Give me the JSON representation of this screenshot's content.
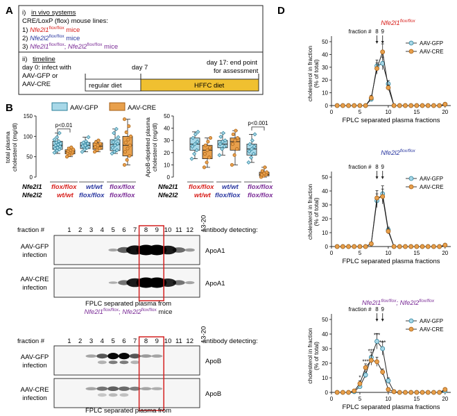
{
  "colors": {
    "gfp": "#a8d8e8",
    "gfp_edge": "#2a7f98",
    "cre": "#e8a04c",
    "cre_edge": "#a55e14",
    "red": "#d8201c",
    "blue": "#2a37a0",
    "purple": "#7a2b96",
    "hffc": "#f0c030",
    "box_highlight": "#d42020"
  },
  "panel_labels": {
    "a": "A",
    "b": "B",
    "c": "C",
    "d": "D"
  },
  "panel_a": {
    "sec1_num": "i)",
    "sec1_title": "in vivo systems",
    "sec1_desc": "CRE/LoxP (flox) mouse lines:",
    "lines": [
      {
        "num": "1)",
        "gene1": "Nfe2l1",
        "sup1": "flox/flox",
        "suffix": " mice"
      },
      {
        "num": "2)",
        "gene1": "Nfe2l2",
        "sup1": "flox/flox",
        "suffix": " mice"
      },
      {
        "num": "3)",
        "gene1": "Nfe2l1",
        "sup1": "flox/flox",
        "sep": "; ",
        "gene2": "Nfe2l2",
        "sup2": "flox/flox",
        "suffix": " mice"
      }
    ],
    "sec2_num": "ii)",
    "sec2_title": "timeline",
    "day0_l1": "day 0: infect with",
    "day0_l2": "AAV-GFP or",
    "day0_l3": "AAV-CRE",
    "day7": "day 7",
    "day17_l1": "day 17: end point",
    "day17_l2": "for assessment",
    "regular_diet": "regular diet",
    "hffc_diet": "HFFC diet"
  },
  "panel_b": {
    "legend": [
      "AAV-GFP",
      "AAV-CRE"
    ],
    "genotype_rows": {
      "row1_gene": "Nfe2l1",
      "row2_gene": "Nfe2l2"
    },
    "groups": [
      {
        "r1": "flox/flox",
        "r2": "wt/wt"
      },
      {
        "r1": "wt/wt",
        "r2": "flox/flox"
      },
      {
        "r1": "flox/flox",
        "r2": "flox/flox"
      }
    ],
    "chart_data": [
      {
        "type": "box",
        "ylabel_l1": "total plasma",
        "ylabel_l2": "cholesterol (mg/dl)",
        "ylim": [
          0,
          150
        ],
        "yticks": [
          "0",
          "50",
          "100",
          "150"
        ],
        "annotation": "p<0.01",
        "series": [
          {
            "name": "AAV-GFP",
            "boxes": [
              {
                "min": 58,
                "q1": 68,
                "median": 78,
                "q3": 88,
                "max": 108,
                "points": [
                  60,
                  65,
                  68,
                  70,
                  72,
                  75,
                  78,
                  80,
                  82,
                  85,
                  88,
                  92,
                  98,
                  108
                ]
              },
              {
                "min": 62,
                "q1": 70,
                "median": 78,
                "q3": 85,
                "max": 98,
                "points": [
                  62,
                  68,
                  72,
                  76,
                  78,
                  82,
                  85,
                  88,
                  98
                ]
              },
              {
                "min": 58,
                "q1": 65,
                "median": 80,
                "q3": 92,
                "max": 118,
                "points": [
                  58,
                  62,
                  66,
                  72,
                  78,
                  82,
                  86,
                  92,
                  98,
                  108,
                  118
                ]
              }
            ]
          },
          {
            "name": "AAV-CRE",
            "boxes": [
              {
                "min": 50,
                "q1": 57,
                "median": 62,
                "q3": 67,
                "max": 73,
                "points": [
                  50,
                  54,
                  57,
                  59,
                  61,
                  62,
                  64,
                  66,
                  68,
                  70,
                  73
                ]
              },
              {
                "min": 62,
                "q1": 68,
                "median": 76,
                "q3": 84,
                "max": 90,
                "points": [
                  62,
                  66,
                  70,
                  74,
                  78,
                  82,
                  86,
                  90
                ]
              },
              {
                "min": 30,
                "q1": 52,
                "median": 78,
                "q3": 100,
                "max": 142,
                "points": [
                  30,
                  42,
                  52,
                  62,
                  70,
                  78,
                  85,
                  92,
                  100,
                  110,
                  125,
                  142
                ]
              }
            ]
          }
        ]
      },
      {
        "type": "box",
        "ylabel_l1": "ApoB-depleted plasma",
        "ylabel_l2": "cholesterol (mg/dl)",
        "ylim": [
          0,
          50
        ],
        "yticks": [
          "0",
          "10",
          "20",
          "30",
          "40",
          "50"
        ],
        "annotation": "p<0.001",
        "series": [
          {
            "name": "AAV-GFP",
            "boxes": [
              {
                "min": 15,
                "q1": 22,
                "median": 27,
                "q3": 32,
                "max": 37,
                "points": [
                  15,
                  19,
                  22,
                  25,
                  27,
                  29,
                  32,
                  35,
                  37
                ]
              },
              {
                "min": 18,
                "q1": 24,
                "median": 27,
                "q3": 30,
                "max": 36,
                "points": [
                  18,
                  23,
                  25,
                  27,
                  29,
                  30,
                  33,
                  36
                ]
              },
              {
                "min": 12,
                "q1": 18,
                "median": 23,
                "q3": 27,
                "max": 35,
                "points": [
                  12,
                  16,
                  19,
                  21,
                  23,
                  25,
                  27,
                  30,
                  35
                ]
              }
            ]
          },
          {
            "name": "AAV-CRE",
            "boxes": [
              {
                "min": 8,
                "q1": 15,
                "median": 22,
                "q3": 26,
                "max": 32,
                "points": [
                  8,
                  12,
                  16,
                  19,
                  22,
                  24,
                  26,
                  29,
                  32
                ]
              },
              {
                "min": 10,
                "q1": 22,
                "median": 29,
                "q3": 32,
                "max": 38,
                "points": [
                  10,
                  18,
                  23,
                  27,
                  30,
                  32,
                  35,
                  38
                ]
              },
              {
                "min": 0,
                "q1": 1,
                "median": 2,
                "q3": 4,
                "max": 8,
                "points": [
                  0,
                  1,
                  2,
                  2,
                  3,
                  4,
                  5,
                  8
                ]
              }
            ]
          }
        ]
      }
    ]
  },
  "panel_c": {
    "fraction_label": "fraction #",
    "fractions": [
      "1",
      "2",
      "3",
      "4",
      "5",
      "6",
      "7",
      "8",
      "9",
      "10",
      "11",
      "12",
      "13-20"
    ],
    "antibody_header": "antibody detecting:",
    "blots_top": [
      {
        "l1": "AAV-GFP",
        "l2": "infection",
        "antibody": "ApoA1",
        "bands": [
          0,
          0,
          0,
          0,
          0.1,
          0.45,
          0.85,
          1,
          1,
          0.8,
          0.4,
          0.15,
          0
        ]
      },
      {
        "l1": "AAV-CRE",
        "l2": "infection",
        "antibody": "ApoA1",
        "bands": [
          0,
          0,
          0,
          0,
          0.05,
          0.35,
          0.8,
          1,
          1,
          0.75,
          0.35,
          0.1,
          0
        ]
      }
    ],
    "blots_bottom": [
      {
        "l1": "AAV-GFP",
        "l2": "infection",
        "antibody": "ApoB",
        "bands": [
          0,
          0,
          0.1,
          0.5,
          0.9,
          0.9,
          0.5,
          0.15,
          0.1,
          0,
          0,
          0,
          0
        ]
      },
      {
        "l1": "AAV-CRE",
        "l2": "infection",
        "antibody": "ApoB",
        "bands": [
          0,
          0,
          0.1,
          0.35,
          0.45,
          0.4,
          0.3,
          0.1,
          0.05,
          0,
          0,
          0,
          0
        ]
      }
    ],
    "caption_l1": "FPLC separated plasma from",
    "caption_gene1": "Nfe2l1",
    "caption_sup1": "flox/flox",
    "caption_sep": "; ",
    "caption_gene2": "Nfe2l2",
    "caption_sup2": "flox/flox",
    "caption_mice": " mice"
  },
  "panel_d": {
    "ylabel_l1": "cholesterol in fraction",
    "ylabel_l2": "(% of total)",
    "xlabel": "FPLC separated plasma fractions",
    "fraction_marker": "fraction #",
    "fraction_marks": [
      "8",
      "9"
    ],
    "legend": [
      "AAV-GFP",
      "AAV-CRE"
    ],
    "chart_data": [
      {
        "type": "line",
        "title_gene": "Nfe2l1",
        "title_sup": "flox/flox",
        "x": [
          1,
          2,
          3,
          4,
          5,
          6,
          7,
          8,
          9,
          10,
          11,
          12,
          13,
          14,
          15,
          16,
          17,
          18,
          19,
          20
        ],
        "xticks": [
          "0",
          "5",
          "10",
          "15",
          "20"
        ],
        "yticks": [
          "0",
          "10",
          "20",
          "30",
          "40",
          "50"
        ],
        "ylim": [
          0,
          50
        ],
        "series": [
          {
            "name": "AAV-GFP",
            "values": [
              0,
              0,
              0,
              0,
              0,
              0,
              5,
              31,
              33,
              17,
              0,
              0,
              0,
              0,
              0,
              0,
              0,
              0,
              0,
              1
            ]
          },
          {
            "name": "AAV-CRE",
            "values": [
              0,
              0,
              0,
              0,
              0,
              0,
              6,
              29,
              42,
              14,
              0,
              0,
              0,
              0,
              0,
              0,
              0,
              0,
              0,
              1
            ]
          }
        ]
      },
      {
        "type": "line",
        "title_gene": "Nfe2l2",
        "title_sup": "flox/flox",
        "x": [
          1,
          2,
          3,
          4,
          5,
          6,
          7,
          8,
          9,
          10,
          11,
          12,
          13,
          14,
          15,
          16,
          17,
          18,
          19,
          20
        ],
        "xticks": [
          "0",
          "5",
          "10",
          "15",
          "20"
        ],
        "yticks": [
          "0",
          "10",
          "20",
          "30",
          "40",
          "50"
        ],
        "ylim": [
          0,
          50
        ],
        "series": [
          {
            "name": "AAV-GFP",
            "values": [
              0,
              0,
              0,
              0,
              0,
              0,
              2,
              33,
              38,
              12,
              0,
              0,
              0,
              0,
              0,
              0,
              0,
              0,
              0,
              1
            ]
          },
          {
            "name": "AAV-CRE",
            "values": [
              0,
              0,
              0,
              0,
              0,
              0,
              2,
              35,
              36,
              11,
              0,
              0,
              0,
              0,
              0,
              0,
              0,
              0,
              0,
              1
            ]
          }
        ]
      },
      {
        "type": "line",
        "title_gene": "Nfe2l1",
        "title_sup": "flox/flox",
        "title_sep": "; ",
        "title_gene2": "Nfe2l2",
        "title_sup2": "flox/flox",
        "x": [
          1,
          2,
          3,
          4,
          5,
          6,
          7,
          8,
          9,
          10,
          11,
          12,
          13,
          14,
          15,
          16,
          17,
          18,
          19,
          20
        ],
        "xticks": [
          "0",
          "5",
          "10",
          "15",
          "20"
        ],
        "yticks": [
          "0",
          "10",
          "20",
          "30",
          "40",
          "50"
        ],
        "ylim": [
          0,
          50
        ],
        "series": [
          {
            "name": "AAV-GFP",
            "values": [
              0,
              0,
              0,
              0.5,
              4,
              12,
              24,
              35,
              30,
              8,
              0.5,
              0,
              0,
              0,
              0,
              0,
              0,
              0,
              0,
              1
            ]
          },
          {
            "name": "AAV-CRE",
            "values": [
              0,
              0,
              0,
              1,
              6,
              17,
              22,
              21,
              14,
              2,
              0.5,
              0,
              0,
              0,
              0,
              0,
              0,
              0,
              0,
              2
            ]
          }
        ],
        "significance": [
          {
            "x": 5,
            "label": "*"
          },
          {
            "x": 6,
            "label": "***"
          },
          {
            "x": 7,
            "label": "***"
          },
          {
            "x": 8,
            "label": "***"
          },
          {
            "x": 9,
            "label": "***"
          }
        ]
      }
    ]
  }
}
